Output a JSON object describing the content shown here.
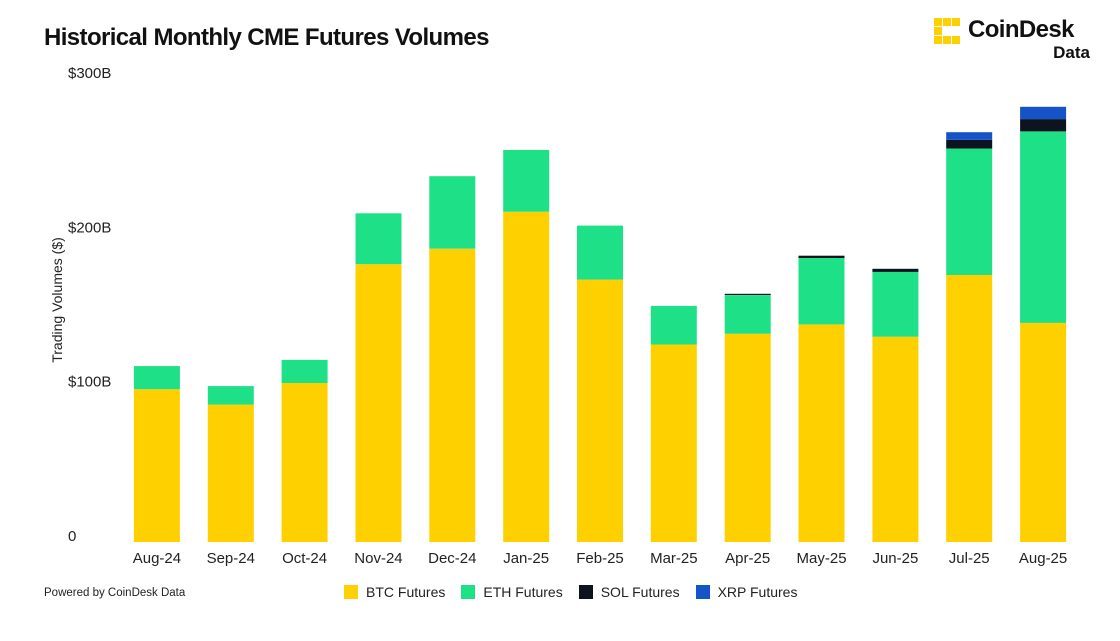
{
  "header": {
    "title": "Historical Monthly CME Futures Volumes"
  },
  "brand": {
    "name": "CoinDesk",
    "sub": "Data",
    "accent_color": "#FFD000",
    "icon": "coindesk-logo-icon"
  },
  "footer": {
    "credit": "Powered by CoinDesk Data"
  },
  "chart_data": {
    "type": "bar",
    "stacked": true,
    "title": "Historical Monthly CME Futures Volumes",
    "xlabel": "",
    "ylabel": "Trading Volumes ($)",
    "ylim": [
      0,
      300
    ],
    "yticks": [
      0,
      100,
      200,
      300
    ],
    "ytick_labels": [
      "0",
      "$100B",
      "$200B",
      "$300B"
    ],
    "grid": false,
    "legend_position": "bottom-center",
    "categories": [
      "Aug-24",
      "Sep-24",
      "Oct-24",
      "Nov-24",
      "Dec-24",
      "Jan-25",
      "Feb-25",
      "Mar-25",
      "Apr-25",
      "May-25",
      "Jun-25",
      "Jul-25",
      "Aug-25"
    ],
    "series": [
      {
        "name": "BTC Futures",
        "color": "#FFD000",
        "values": [
          99,
          89,
          103,
          180,
          190,
          214,
          170,
          128,
          135,
          141,
          133,
          173,
          142
        ]
      },
      {
        "name": "ETH Futures",
        "color": "#1DE087",
        "values": [
          15,
          12,
          15,
          33,
          47,
          40,
          35,
          25,
          25,
          43,
          42,
          82,
          124
        ]
      },
      {
        "name": "SOL Futures",
        "color": "#0D1420",
        "values": [
          0,
          0,
          0,
          0,
          0,
          0,
          0,
          0,
          0.8,
          1.5,
          2,
          5.5,
          8
        ]
      },
      {
        "name": "XRP Futures",
        "color": "#1652C8",
        "values": [
          0,
          0,
          0,
          0,
          0,
          0,
          0,
          0,
          0,
          0,
          0,
          5,
          8
        ]
      }
    ]
  }
}
